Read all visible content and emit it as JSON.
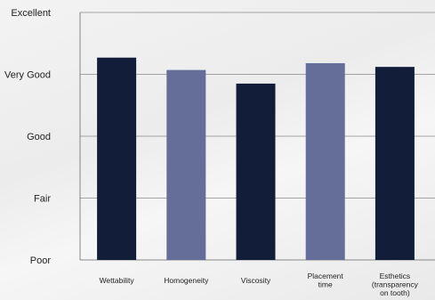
{
  "chart_data": {
    "type": "bar",
    "title": "",
    "xlabel": "",
    "ylabel": "",
    "y_ticks": [
      "Poor",
      "Fair",
      "Good",
      "Very Good",
      "Excellent"
    ],
    "ylim": [
      1,
      5
    ],
    "grid": true,
    "categories": [
      [
        "Wettability"
      ],
      [
        "Homogeneity"
      ],
      [
        "Viscosity"
      ],
      [
        "Placement",
        "time"
      ],
      [
        "Esthetics",
        "(transparency",
        "on tooth)"
      ]
    ],
    "values": [
      4.27,
      4.07,
      3.85,
      4.18,
      4.12
    ],
    "colors": [
      "#121d3a",
      "#656d99",
      "#121d3a",
      "#656d99",
      "#121d3a"
    ]
  }
}
